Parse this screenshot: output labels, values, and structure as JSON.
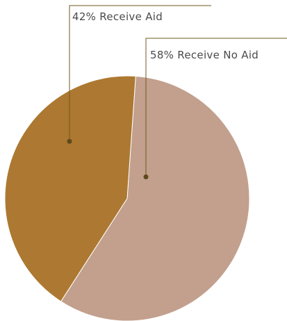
{
  "chart_data": {
    "type": "pie",
    "title": "",
    "slices": [
      {
        "label": "58% Receive No Aid",
        "value": 58,
        "color": "#c2a08d"
      },
      {
        "label": "42% Receive Aid",
        "value": 42,
        "color": "#ad7831"
      }
    ],
    "legend": "callout labels"
  }
}
